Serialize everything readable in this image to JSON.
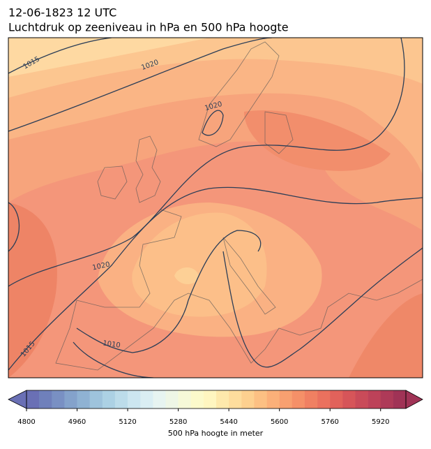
{
  "header": {
    "title": "12-06-1823 12 UTC",
    "subtitle": "Luchtdruk op zeeniveau in hPa en 500 hPa hoogte"
  },
  "map": {
    "isobar_labels": [
      "1015",
      "1020",
      "1020",
      "1020",
      "1010",
      "1015"
    ]
  },
  "colorbar": {
    "label": "500 hPa hoogte in meter",
    "lim": [
      4800,
      6000
    ],
    "ticks": [
      4800,
      4960,
      5120,
      5280,
      5440,
      5600,
      5760,
      5920
    ],
    "extend": "both",
    "colors": [
      "#6a70b5",
      "#6f80bb",
      "#7990c3",
      "#84a2cb",
      "#8fb2d3",
      "#9ec3dc",
      "#acd1e4",
      "#bcdcea",
      "#cce6f0",
      "#daeef3",
      "#e7f4f1",
      "#eef6e6",
      "#f6f9d8",
      "#fcfacb",
      "#fff6c0",
      "#fee9ac",
      "#fedd9d",
      "#fdd08f",
      "#fcc083",
      "#fbb079",
      "#f8a070",
      "#f59068",
      "#f08062",
      "#ea715e",
      "#e1625b",
      "#d65559",
      "#c94b59",
      "#bd4259",
      "#ae3a58",
      "#a03356"
    ]
  }
}
